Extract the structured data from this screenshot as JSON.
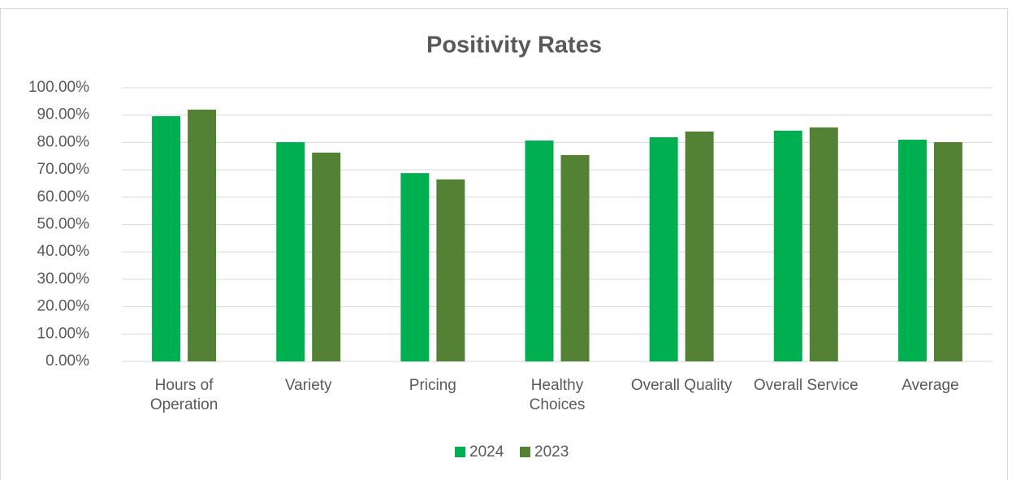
{
  "chart_data": {
    "type": "bar",
    "title": "Positivity Rates",
    "categories": [
      "Hours of\nOperation",
      "Variety",
      "Pricing",
      "Healthy\nChoices",
      "Overall Quality",
      "Overall Service",
      "Average"
    ],
    "series": [
      {
        "name": "2024",
        "color": "#00b050",
        "values": [
          89.6,
          80.1,
          68.8,
          80.7,
          81.9,
          84.3,
          81.0
        ]
      },
      {
        "name": "2023",
        "color": "#548235",
        "values": [
          92.0,
          76.3,
          66.5,
          75.4,
          84.0,
          85.5,
          80.1
        ]
      }
    ],
    "ylim": [
      0,
      100
    ],
    "yticks": [
      {
        "value": 0,
        "label": "0.00%"
      },
      {
        "value": 10,
        "label": "10.00%"
      },
      {
        "value": 20,
        "label": "20.00%"
      },
      {
        "value": 30,
        "label": "30.00%"
      },
      {
        "value": 40,
        "label": "40.00%"
      },
      {
        "value": 50,
        "label": "50.00%"
      },
      {
        "value": 60,
        "label": "60.00%"
      },
      {
        "value": 70,
        "label": "70.00%"
      },
      {
        "value": 80,
        "label": "80.00%"
      },
      {
        "value": 90,
        "label": "90.00%"
      },
      {
        "value": 100,
        "label": "100.00%"
      }
    ],
    "grid": true,
    "legend": "bottom"
  }
}
